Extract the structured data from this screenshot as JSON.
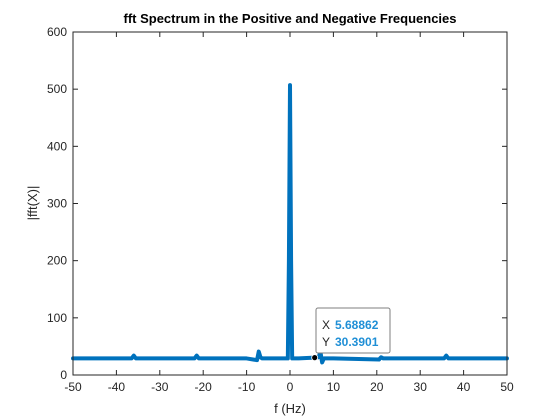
{
  "chart_data": {
    "type": "line",
    "title": "fft Spectrum in the Positive and Negative Frequencies",
    "xlabel": "f (Hz)",
    "ylabel": "|fft(X)|",
    "xlim": [
      -50,
      50
    ],
    "ylim": [
      0,
      600
    ],
    "xticks": [
      "-50",
      "-40",
      "-30",
      "-20",
      "-10",
      "0",
      "10",
      "20",
      "30",
      "40",
      "50"
    ],
    "yticks": [
      "0",
      "100",
      "200",
      "300",
      "400",
      "500",
      "600"
    ],
    "grid": false,
    "line_color": "#0072bd",
    "series": [
      {
        "x": [
          -50,
          -40,
          -36.5,
          -36,
          -35.5,
          -30,
          -22,
          -21.5,
          -21,
          -10,
          -7.6,
          -7.2,
          -6.8,
          -6.4,
          -2,
          -0.5,
          -0.25,
          0,
          0.25,
          0.5,
          2,
          5.69,
          6.6,
          7,
          7.4,
          7.8,
          10,
          20.5,
          21,
          21.5,
          30,
          35.5,
          36,
          36.5,
          50
        ],
        "y": [
          29,
          29,
          29,
          34,
          29,
          29,
          29,
          34,
          29,
          29,
          26,
          41,
          31,
          29,
          29,
          29,
          200,
          507,
          200,
          29,
          29,
          30.39,
          31,
          41,
          22,
          29,
          29,
          27,
          31,
          29,
          29,
          29,
          34,
          29,
          29
        ]
      }
    ],
    "datatip": {
      "x_key": "X",
      "x_value": "5.68862",
      "y_key": "Y",
      "y_value": "30.3901",
      "x": 5.68862,
      "y": 30.3901
    }
  }
}
